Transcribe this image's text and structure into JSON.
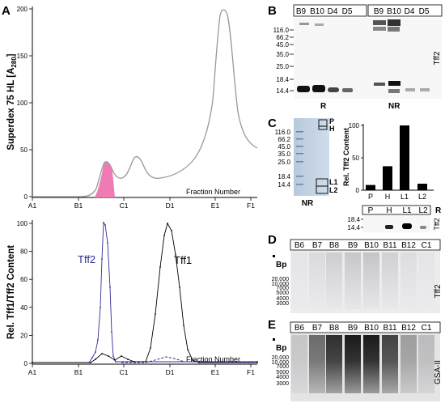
{
  "panelA": {
    "letter": "A",
    "top_ylabel": "Superdex 75 HL [A280]",
    "top_ylabel_main": "Superdex 75 HL [A",
    "top_ylabel_sub": "280",
    "top_ylabel_end": "]",
    "bottom_ylabel": "Rel. Tff1/Tff2 Content",
    "xlabel": "Fraction Number",
    "fraction_ticks": [
      "A1",
      "B1",
      "C1",
      "D1",
      "E1",
      "F1"
    ],
    "top_yticks": [
      "0",
      "50",
      "100",
      "150",
      "200"
    ],
    "bottom_yticks": [
      "0",
      "20",
      "40",
      "60",
      "80",
      "100"
    ],
    "series_tff2": "Tff2",
    "series_tff1": "Tff1",
    "colors": {
      "tff2": "#2e2e99",
      "tff1": "#000000",
      "a280": "#888888",
      "highlight": "#f07ab4"
    }
  },
  "panelB": {
    "letter": "B",
    "lanes_left": [
      "B9",
      "B10",
      "D4",
      "D5"
    ],
    "lanes_right": [
      "B9",
      "B10",
      "D4",
      "D5"
    ],
    "markers": [
      "116.0",
      "66.2",
      "45.0",
      "35.0",
      "25.0",
      "18.4",
      "14.4"
    ],
    "cond_left": "R",
    "cond_right": "NR",
    "side_label": "Tff2"
  },
  "panelC": {
    "letter": "C",
    "markers": [
      "116.0",
      "66.2",
      "45.0",
      "35.0",
      "25.0",
      "18.4",
      "14.4"
    ],
    "box_labels": [
      "P",
      "H",
      "L1",
      "L2"
    ],
    "gel_label": "NR",
    "bar_ylabel": "Rel. Tff2 Content",
    "bar_yticks": [
      "0",
      "50",
      "100"
    ],
    "blot_lanes": [
      "P",
      "H",
      "L1",
      "L2"
    ],
    "blot_cond": "R",
    "blot_markers": [
      "18.4",
      "14.4"
    ],
    "blot_side": "Tff2",
    "chart_data": {
      "type": "bar",
      "categories": [
        "P",
        "H",
        "L1",
        "L2"
      ],
      "values": [
        8,
        37,
        100,
        10
      ],
      "ylabel": "Rel. Tff2 Content",
      "ylim": [
        0,
        100
      ]
    }
  },
  "panelD": {
    "letter": "D",
    "lanes": [
      "B6",
      "B7",
      "B8",
      "B9",
      "B10",
      "B11",
      "B12",
      "C1"
    ],
    "unit": "Bp",
    "markers": [
      "20,000",
      "10,000",
      "7000",
      "5000",
      "4000",
      "3000"
    ],
    "side": "Tff2"
  },
  "panelE": {
    "letter": "E",
    "lanes": [
      "B6",
      "B7",
      "B8",
      "B9",
      "B10",
      "B11",
      "B12",
      "C1"
    ],
    "unit": "Bp",
    "markers": [
      "20,000",
      "10,000",
      "7000",
      "5000",
      "4000",
      "3000"
    ],
    "side": "GSA-II"
  }
}
